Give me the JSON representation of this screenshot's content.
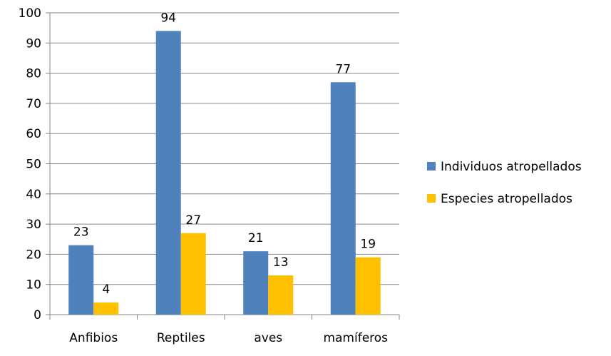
{
  "chart_data": {
    "type": "bar",
    "title": "",
    "xlabel": "",
    "ylabel": "",
    "categories": [
      "Anfibios",
      "Reptiles",
      "aves",
      "mamíferos"
    ],
    "series": [
      {
        "name": "Individuos atropellados",
        "values": [
          23,
          94,
          21,
          77
        ],
        "color": "#4F81BD"
      },
      {
        "name": "Especies atropellados",
        "values": [
          4,
          27,
          13,
          19
        ],
        "color": "#FFC000"
      }
    ],
    "ylim": [
      0,
      100
    ],
    "yticks": [
      0,
      10,
      20,
      30,
      40,
      50,
      60,
      70,
      80,
      90,
      100
    ],
    "grid": true,
    "data_labels": true,
    "legend_position": "right"
  },
  "colors": {
    "grid": "#868686",
    "axis": "#868686"
  }
}
